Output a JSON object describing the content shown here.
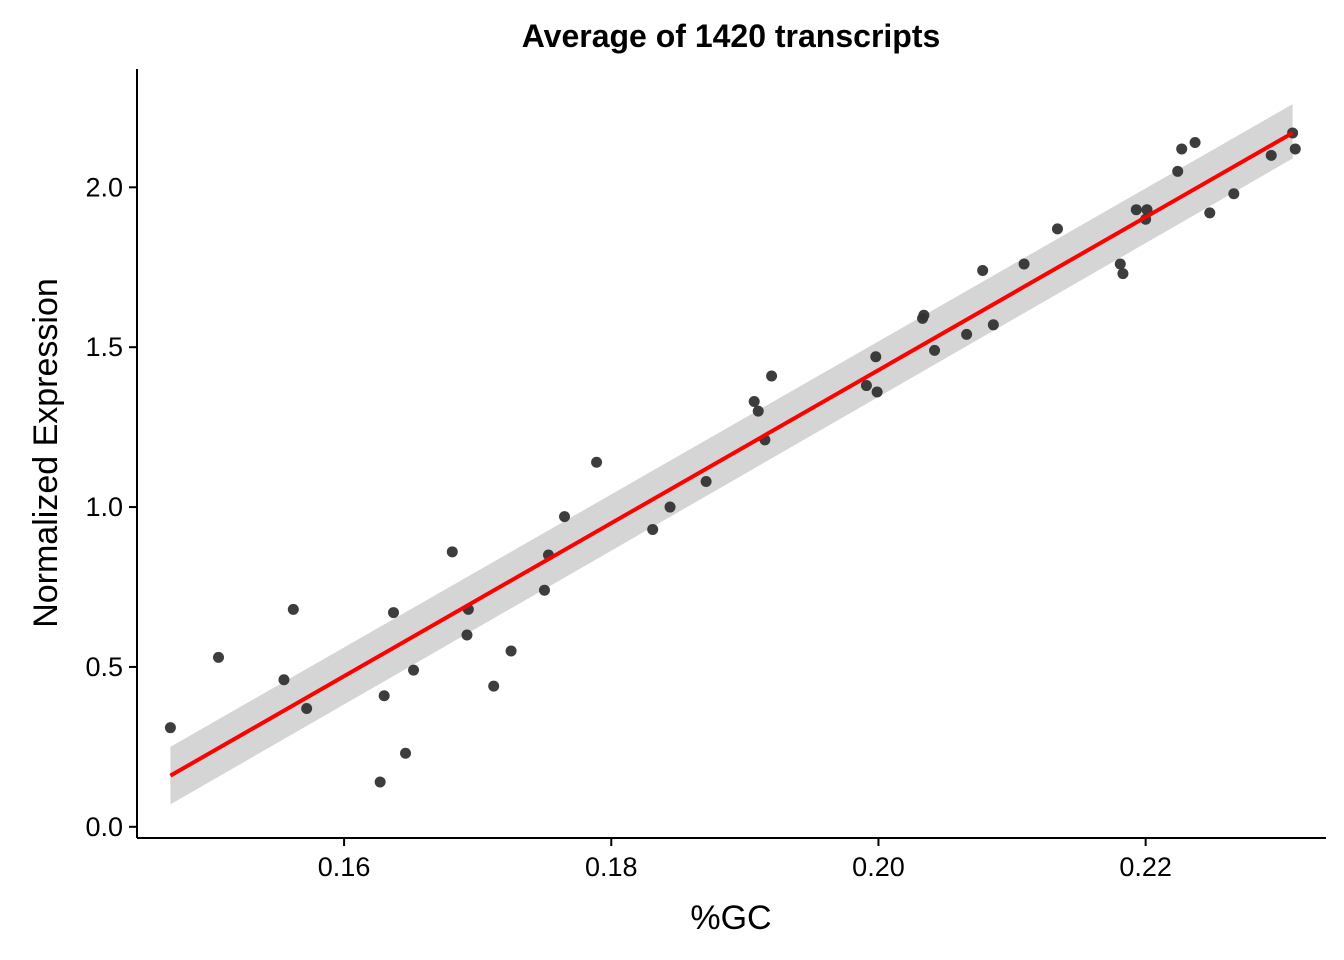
{
  "chart_data": {
    "type": "scatter",
    "title": "Average of 1420 transcripts",
    "xlabel": "%GC",
    "ylabel": "Normalized Expression",
    "xlim": [
      0.1445,
      0.2335
    ],
    "ylim": [
      -0.035,
      2.37
    ],
    "xticks": [
      0.16,
      0.18,
      0.2,
      0.22
    ],
    "xtick_labels": [
      "0.16",
      "0.18",
      "0.20",
      "0.22"
    ],
    "yticks": [
      0.0,
      0.5,
      1.0,
      1.5,
      2.0
    ],
    "ytick_labels": [
      "0.0",
      "0.5",
      "1.0",
      "1.5",
      "2.0"
    ],
    "grid": false,
    "colors": {
      "points": "#333333",
      "fit_line": "#ff0000",
      "confidence_band": "#d3d3d3"
    },
    "series": [
      {
        "kind": "points",
        "x": [
          0.147,
          0.1506,
          0.1555,
          0.1562,
          0.1572,
          0.1627,
          0.163,
          0.1637,
          0.1646,
          0.1652,
          0.1681,
          0.1692,
          0.1693,
          0.1712,
          0.1725,
          0.175,
          0.1753,
          0.1765,
          0.1789,
          0.1831,
          0.1844,
          0.1871,
          0.1907,
          0.191,
          0.1915,
          0.192,
          0.1991,
          0.1998,
          0.1999,
          0.2033,
          0.2034,
          0.2042,
          0.2066,
          0.2078,
          0.2086,
          0.2109,
          0.2134,
          0.2181,
          0.2183,
          0.2193,
          0.22,
          0.2201,
          0.2224,
          0.2227,
          0.2237,
          0.2248,
          0.2266,
          0.2294,
          0.231,
          0.2312
        ],
        "y": [
          0.31,
          0.53,
          0.46,
          0.68,
          0.37,
          0.14,
          0.41,
          0.67,
          0.23,
          0.49,
          0.86,
          0.6,
          0.68,
          0.44,
          0.55,
          0.74,
          0.85,
          0.97,
          1.14,
          0.93,
          1.0,
          1.08,
          1.33,
          1.3,
          1.21,
          1.41,
          1.38,
          1.47,
          1.36,
          1.59,
          1.6,
          1.49,
          1.54,
          1.74,
          1.57,
          1.76,
          1.87,
          1.76,
          1.73,
          1.93,
          1.9,
          1.93,
          2.05,
          2.12,
          2.14,
          1.92,
          1.98,
          2.1,
          2.17,
          2.12
        ]
      },
      {
        "kind": "linear_fit",
        "x": [
          0.147,
          0.231
        ],
        "y": [
          0.16,
          2.17
        ],
        "band_lower": [
          0.07,
          2.09
        ],
        "band_upper": [
          0.25,
          2.26
        ]
      }
    ]
  }
}
